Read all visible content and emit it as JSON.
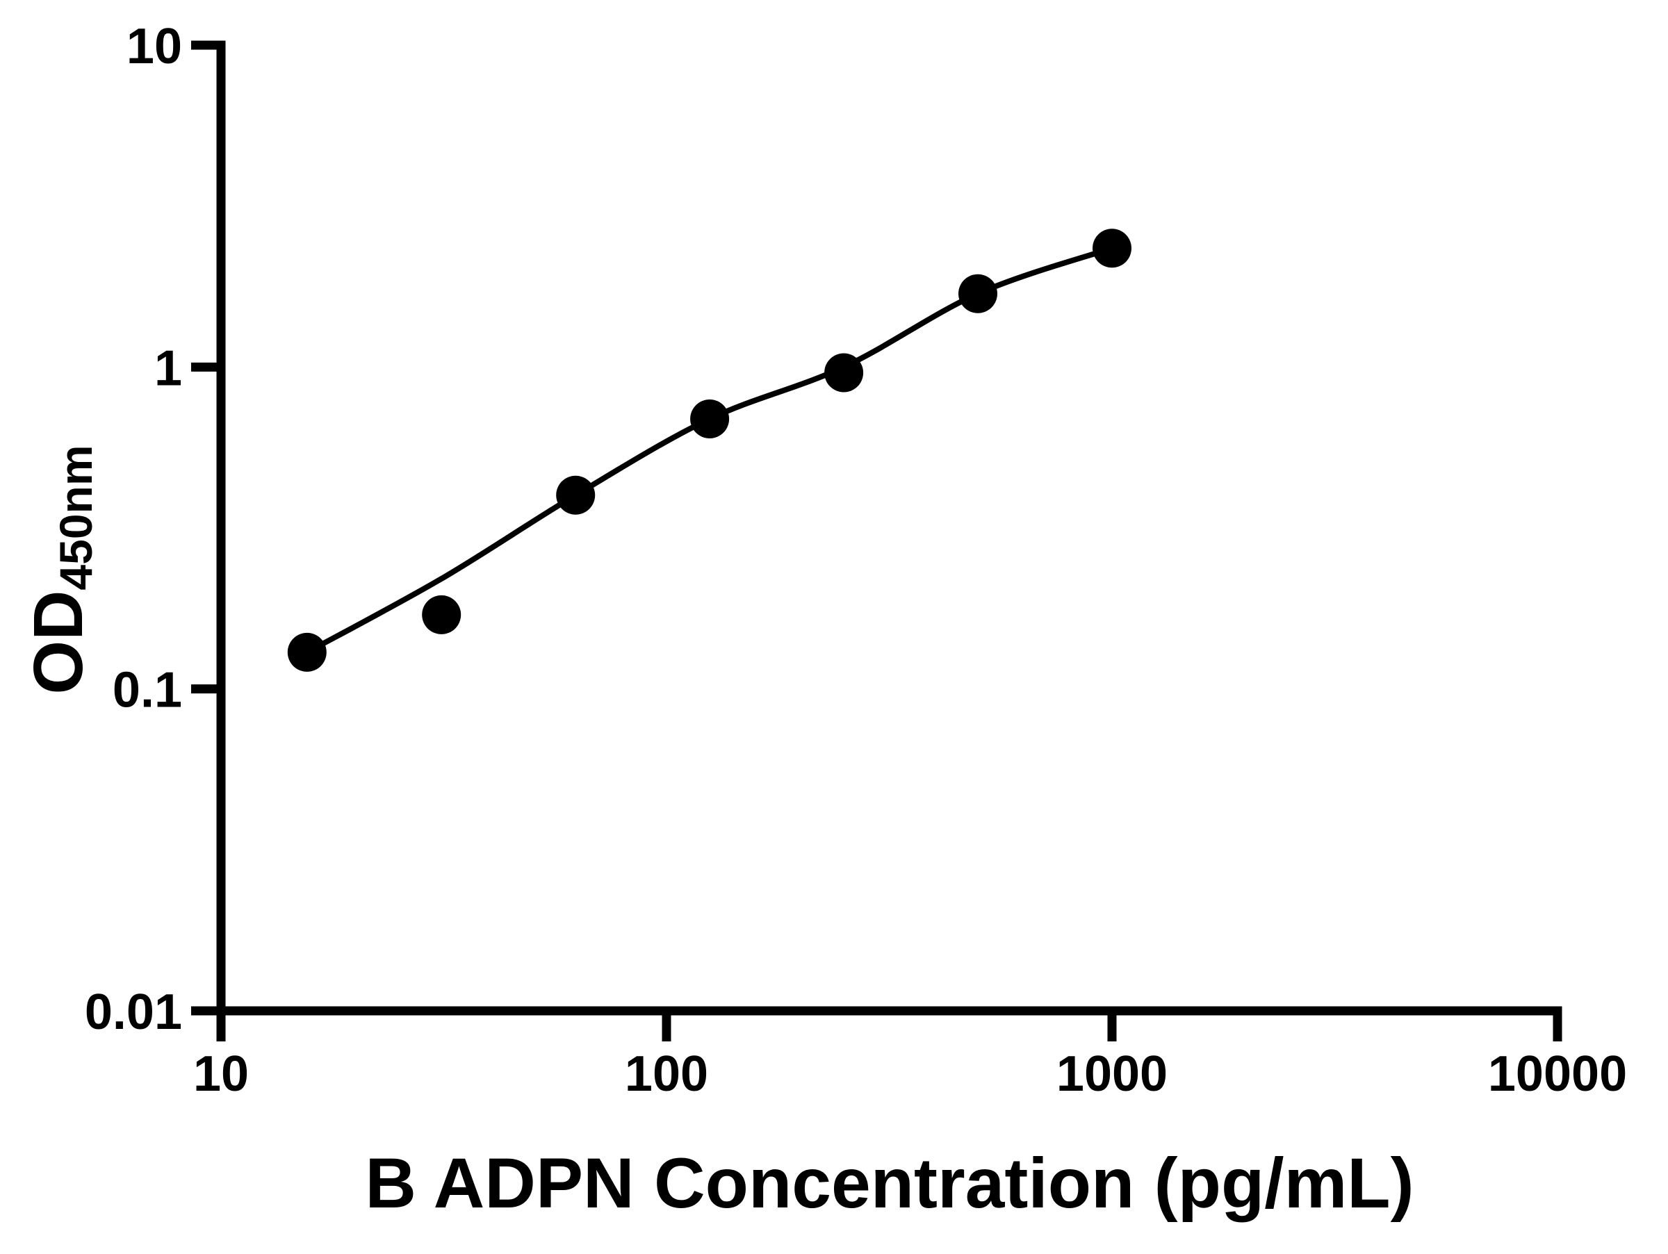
{
  "chart_data": {
    "type": "scatter",
    "title": "",
    "xlabel": "B ADPN Concentration (pg/mL)",
    "ylabel": "OD450nm",
    "ylabel_main": "OD",
    "ylabel_subscript": "450nm",
    "x_scale": "log",
    "y_scale": "log",
    "xlim": [
      10,
      10000
    ],
    "ylim": [
      0.01,
      10
    ],
    "grid": false,
    "legend_position": "none",
    "x_ticks": [
      {
        "value": 10,
        "label": "10"
      },
      {
        "value": 100,
        "label": "100"
      },
      {
        "value": 1000,
        "label": "1000"
      },
      {
        "value": 10000,
        "label": "10000"
      }
    ],
    "y_ticks": [
      {
        "value": 0.01,
        "label": "0.01"
      },
      {
        "value": 0.1,
        "label": "0.1"
      },
      {
        "value": 1,
        "label": "1"
      },
      {
        "value": 10,
        "label": "10"
      }
    ],
    "series": [
      {
        "name": "standard-points",
        "render": "scatter",
        "x": [
          15.6,
          31.25,
          62.5,
          125,
          250,
          500,
          1000
        ],
        "y": [
          0.13,
          0.17,
          0.4,
          0.69,
          0.96,
          1.69,
          2.34
        ]
      },
      {
        "name": "fit-curve",
        "render": "line",
        "x": [
          15.6,
          31.25,
          62.5,
          125,
          250,
          500,
          1000
        ],
        "y": [
          0.13,
          0.22,
          0.4,
          0.69,
          1.0,
          1.69,
          2.34
        ]
      }
    ],
    "colors": {
      "axis": "#000000",
      "marker": "#000000",
      "curve": "#000000",
      "background": "#ffffff"
    },
    "marker_radius_px": 28,
    "curve_stroke_px": 8,
    "axis_stroke_px": 13
  }
}
